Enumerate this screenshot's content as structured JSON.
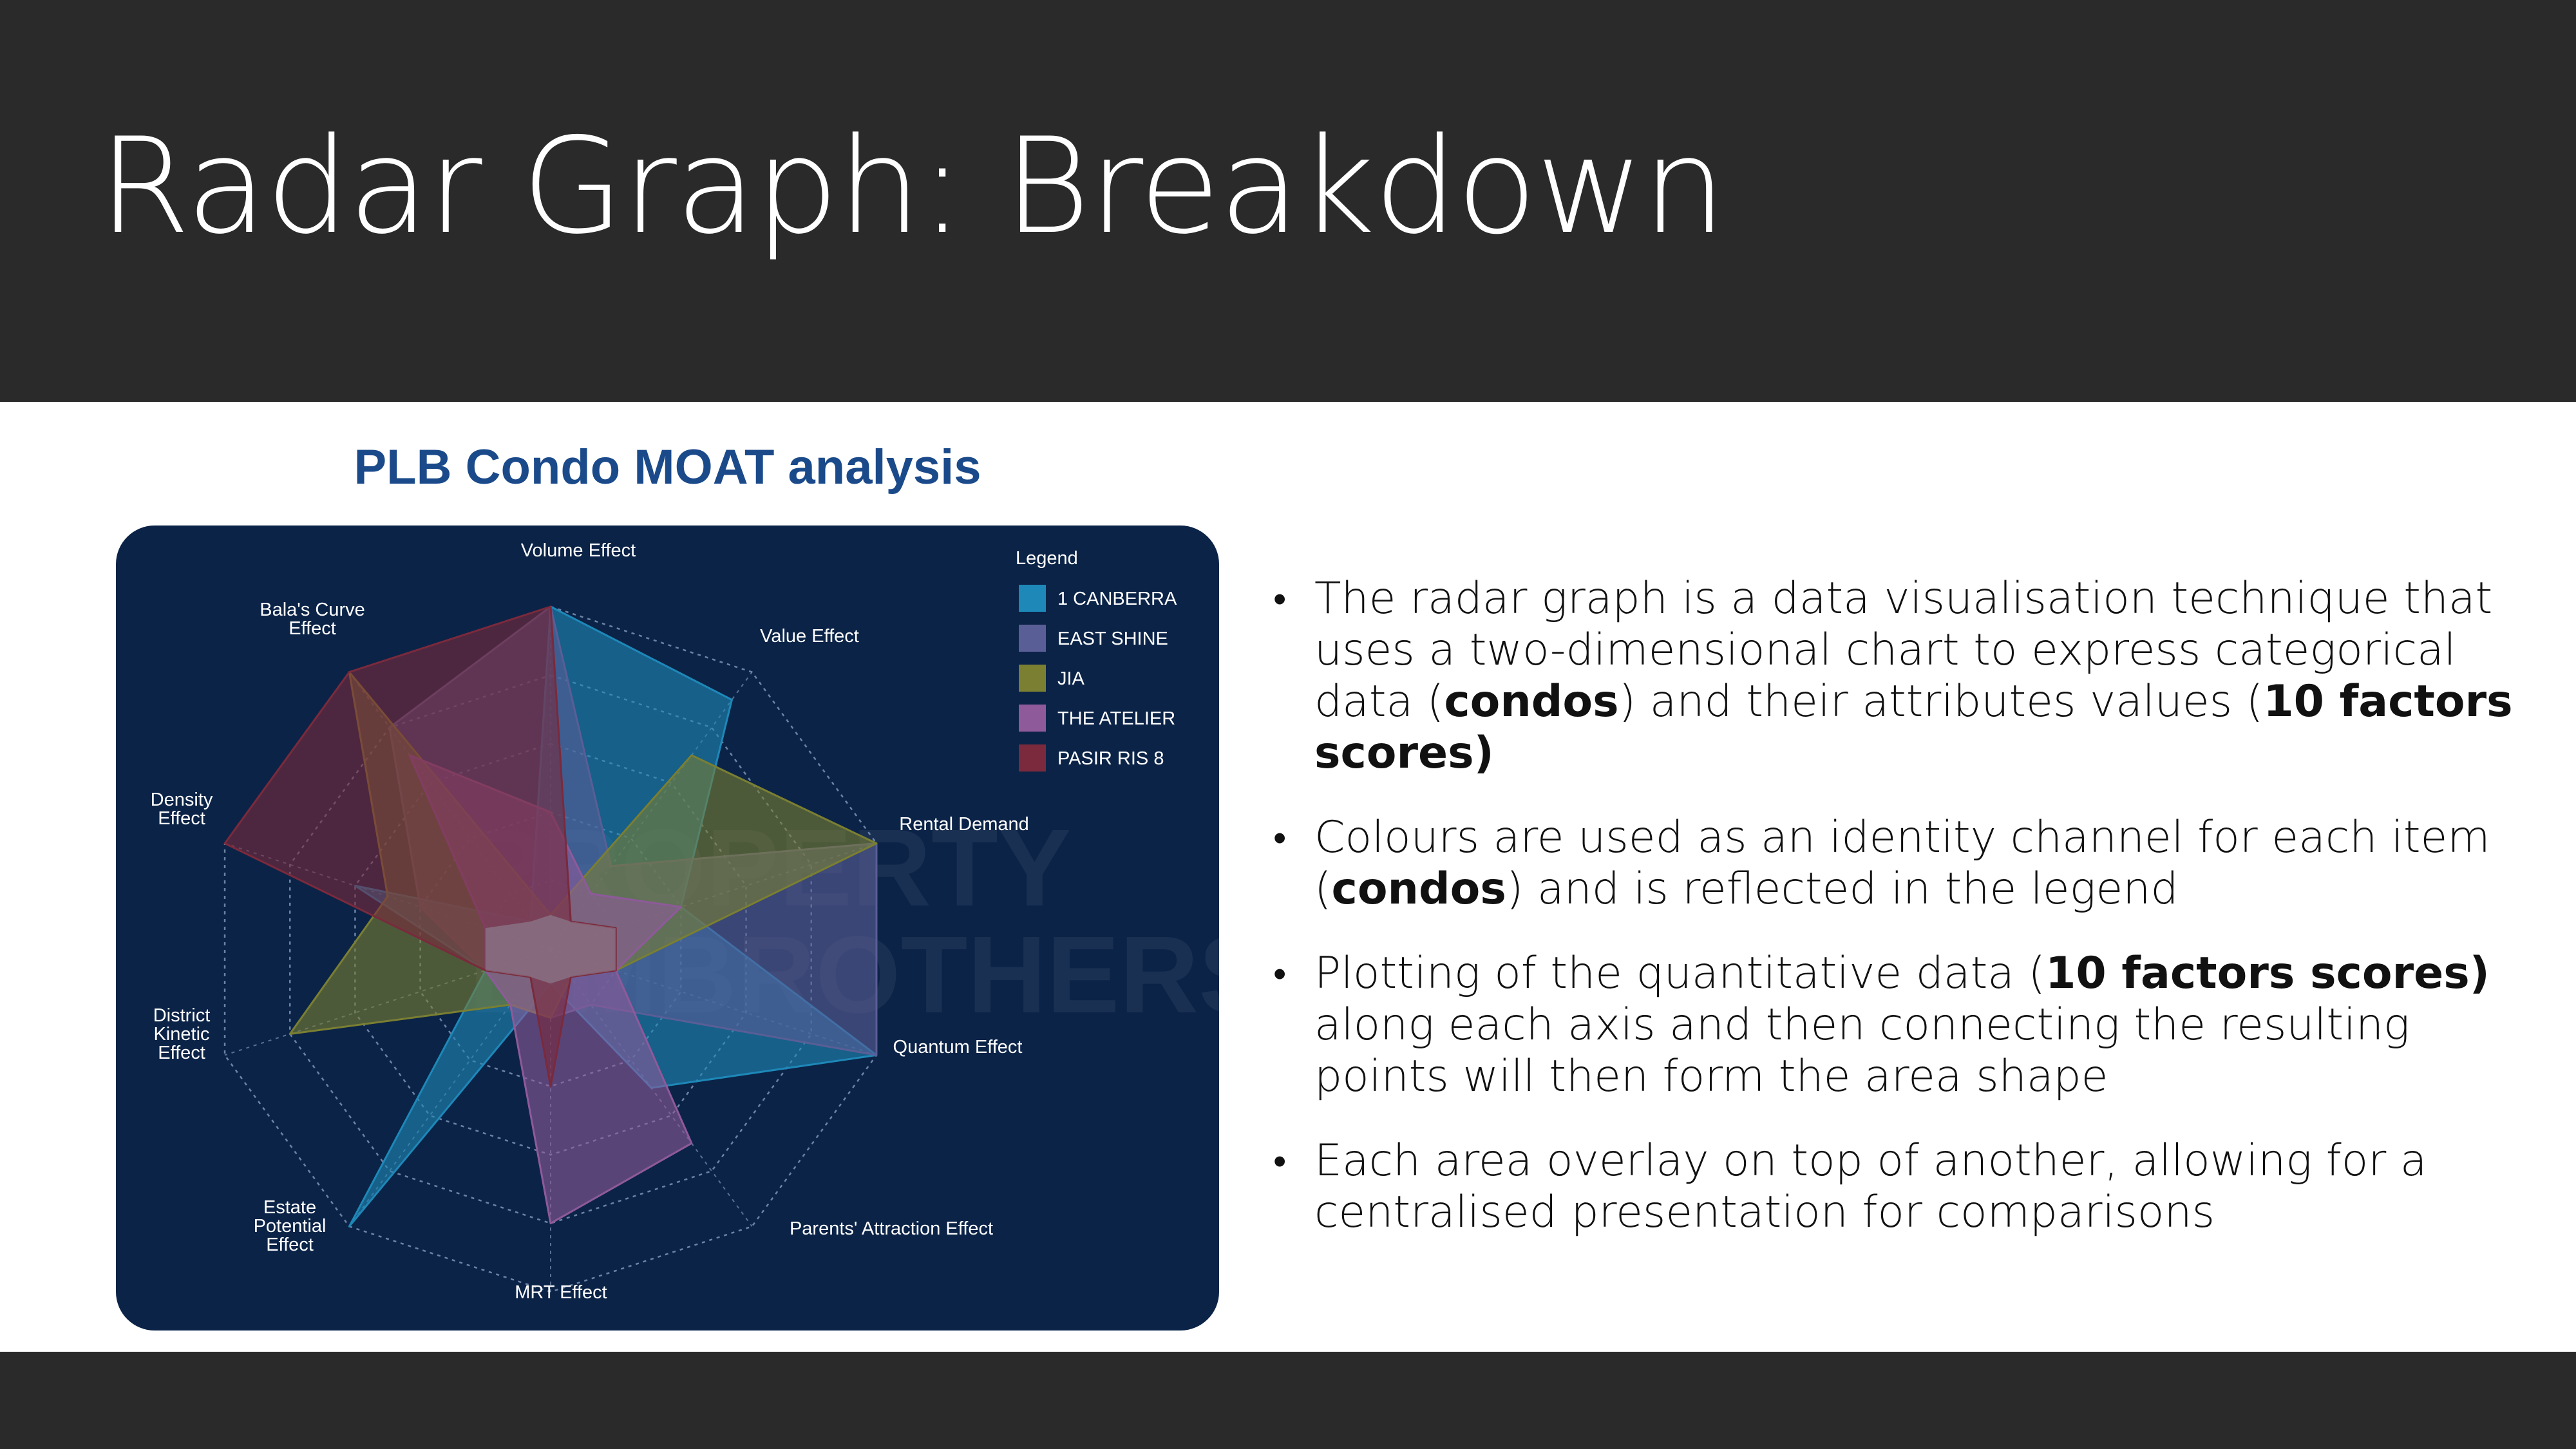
{
  "slide": {
    "title": "Radar Graph: Breakdown"
  },
  "bullets": [
    [
      {
        "t": "The radar graph is a data visualisation technique that uses a two-dimensional chart to express categorical data ("
      },
      {
        "t": "condos",
        "b": true
      },
      {
        "t": ") and their attributes values ("
      },
      {
        "t": "10 factors scores)",
        "b": true
      }
    ],
    [
      {
        "t": "Colours are used as an identity channel for each item ("
      },
      {
        "t": "condos",
        "b": true
      },
      {
        "t": ") and is reflected in the legend"
      }
    ],
    [
      {
        "t": "Plotting of the quantitative data ("
      },
      {
        "t": "10 factors scores)",
        "b": true
      },
      {
        "t": " along each axis and then connecting the resulting points will then form the area shape"
      }
    ],
    [
      {
        "t": "Each area overlay on top of another, allowing for a centralised presentation for comparisons"
      }
    ]
  ],
  "chart_data": {
    "type": "radar",
    "title": "PLB Condo MOAT analysis",
    "axes": [
      "Volume Effect",
      "Value Effect",
      "Rental Demand",
      "Quantum Effect",
      "Parents' Attraction Effect",
      "MRT Effect",
      "Estate Potential Effect",
      "District Kinetic Effect",
      "Density Effect",
      "Bala's Curve Effect"
    ],
    "range": [
      0,
      10
    ],
    "rings": [
      2,
      4,
      6,
      8,
      10
    ],
    "legend_title": "Legend",
    "legend_position": "top-right",
    "watermark": [
      "PROPERTY",
      "LIMBROTHERS"
    ],
    "series": [
      {
        "name": "1 CANBERRA",
        "color": "#1e88b8",
        "values": [
          10,
          9,
          4,
          10,
          5,
          1,
          10,
          2,
          6,
          1
        ]
      },
      {
        "name": "EAST SHINE",
        "color": "#5a5e96",
        "values": [
          10,
          3,
          10,
          10,
          2,
          2,
          2,
          2,
          4,
          8
        ]
      },
      {
        "name": "JIA",
        "color": "#7a7f32",
        "values": [
          1,
          7,
          10,
          2,
          1,
          2,
          2,
          8,
          5,
          10
        ]
      },
      {
        "name": "THE ATELIER",
        "color": "#8e5a9a",
        "values": [
          4,
          2,
          4,
          2,
          7,
          8,
          2,
          2,
          2,
          7
        ]
      },
      {
        "name": "PASIR RIS 8",
        "color": "#7a2a3c",
        "values": [
          10,
          1,
          2,
          2,
          1,
          4,
          1,
          2,
          10,
          10
        ]
      }
    ]
  }
}
